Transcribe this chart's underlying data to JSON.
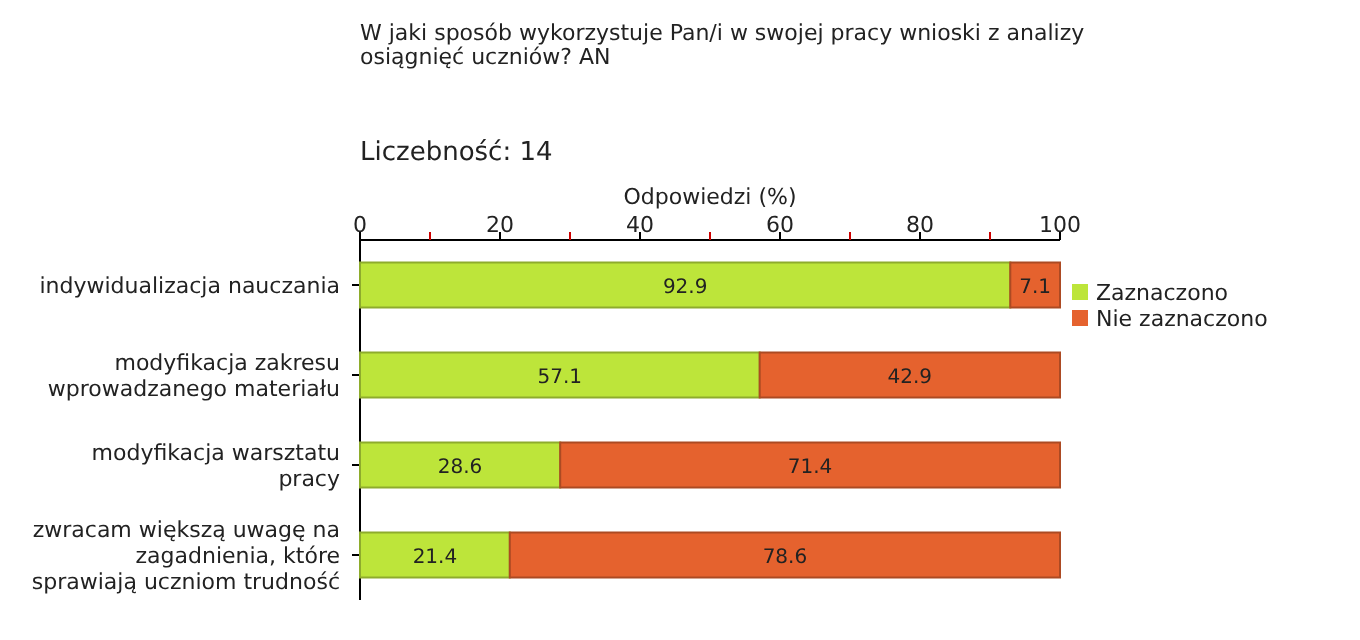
{
  "chart_data": {
    "type": "bar",
    "orientation": "horizontal",
    "stacked": true,
    "title": "W jaki sposób wykorzystuje Pan/i w swojej pracy wnioski z analizy osiągnięć uczniów? AN",
    "subtitle": "Liczebność: 14",
    "xlabel": "Odpowiedzi (%)",
    "categories": [
      "indywidualizacja nauczania",
      "modyfikacja zakresu wprowadzanego materiału",
      "modyfikacja warsztatu pracy",
      "zwracam większą uwagę na zagadnienia, które sprawiają uczniom trudność"
    ],
    "series": [
      {
        "name": "Zaznaczono",
        "color": "#bde53a",
        "values": [
          92.9,
          57.1,
          28.6,
          21.4
        ]
      },
      {
        "name": "Nie zaznaczono",
        "color": "#e5622e",
        "values": [
          7.1,
          42.9,
          71.4,
          78.6
        ]
      }
    ],
    "xlim": [
      0,
      100
    ],
    "xticks": [
      0,
      {
        "value": 10,
        "label": null
      },
      20,
      {
        "value": 30,
        "label": null
      },
      40,
      {
        "value": 50,
        "label": null
      },
      60,
      {
        "value": 70,
        "label": null
      },
      80,
      {
        "value": 90,
        "label": null
      },
      100
    ],
    "data_labels": true,
    "legend": "top right",
    "grid": false
  }
}
